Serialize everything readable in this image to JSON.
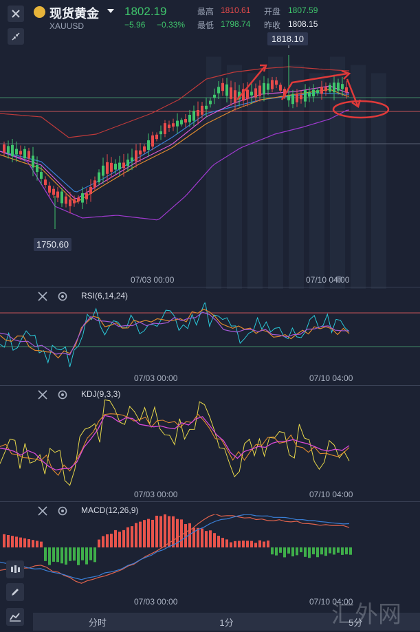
{
  "header": {
    "name": "现货黄金",
    "symbol": "XAUUSD",
    "price": "1802.19",
    "change": "−5.96",
    "change_pct": "−0.33%",
    "high_label": "最高",
    "high": "1810.61",
    "open_label": "开盘",
    "open": "1807.59",
    "low_label": "最低",
    "low": "1798.74",
    "prev_label": "昨收",
    "prev": "1808.15"
  },
  "main_chart": {
    "max_label": "1818.10",
    "min_label": "1750.60",
    "times": [
      "07/03 00:00",
      "07/10 04:00"
    ]
  },
  "indicators": [
    {
      "title": "RSI(6,14,24)",
      "times": [
        "07/03 00:00",
        "07/10 04:00"
      ]
    },
    {
      "title": "KDJ(9,3,3)",
      "times": [
        "07/03 00:00",
        "07/10 04:00"
      ]
    },
    {
      "title": "MACD(12,26,9)",
      "times": [
        "07/03 00:00",
        "07/10 04:00"
      ]
    }
  ],
  "tabs": [
    "分时",
    "1分",
    "5分"
  ],
  "watermark": "汇外网",
  "colors": {
    "up": "#e84b4b",
    "down": "#3fc46c",
    "bg": "#1c2233"
  }
}
